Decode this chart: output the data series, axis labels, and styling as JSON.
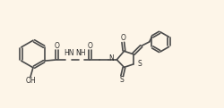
{
  "bg_color": "#fdf5e8",
  "bond_color": "#4a4a4a",
  "bond_lw": 1.2,
  "text_color": "#2a2a2a",
  "font_size": 5.5,
  "xlim": [
    0,
    10.2
  ],
  "ylim": [
    0,
    4.8
  ]
}
